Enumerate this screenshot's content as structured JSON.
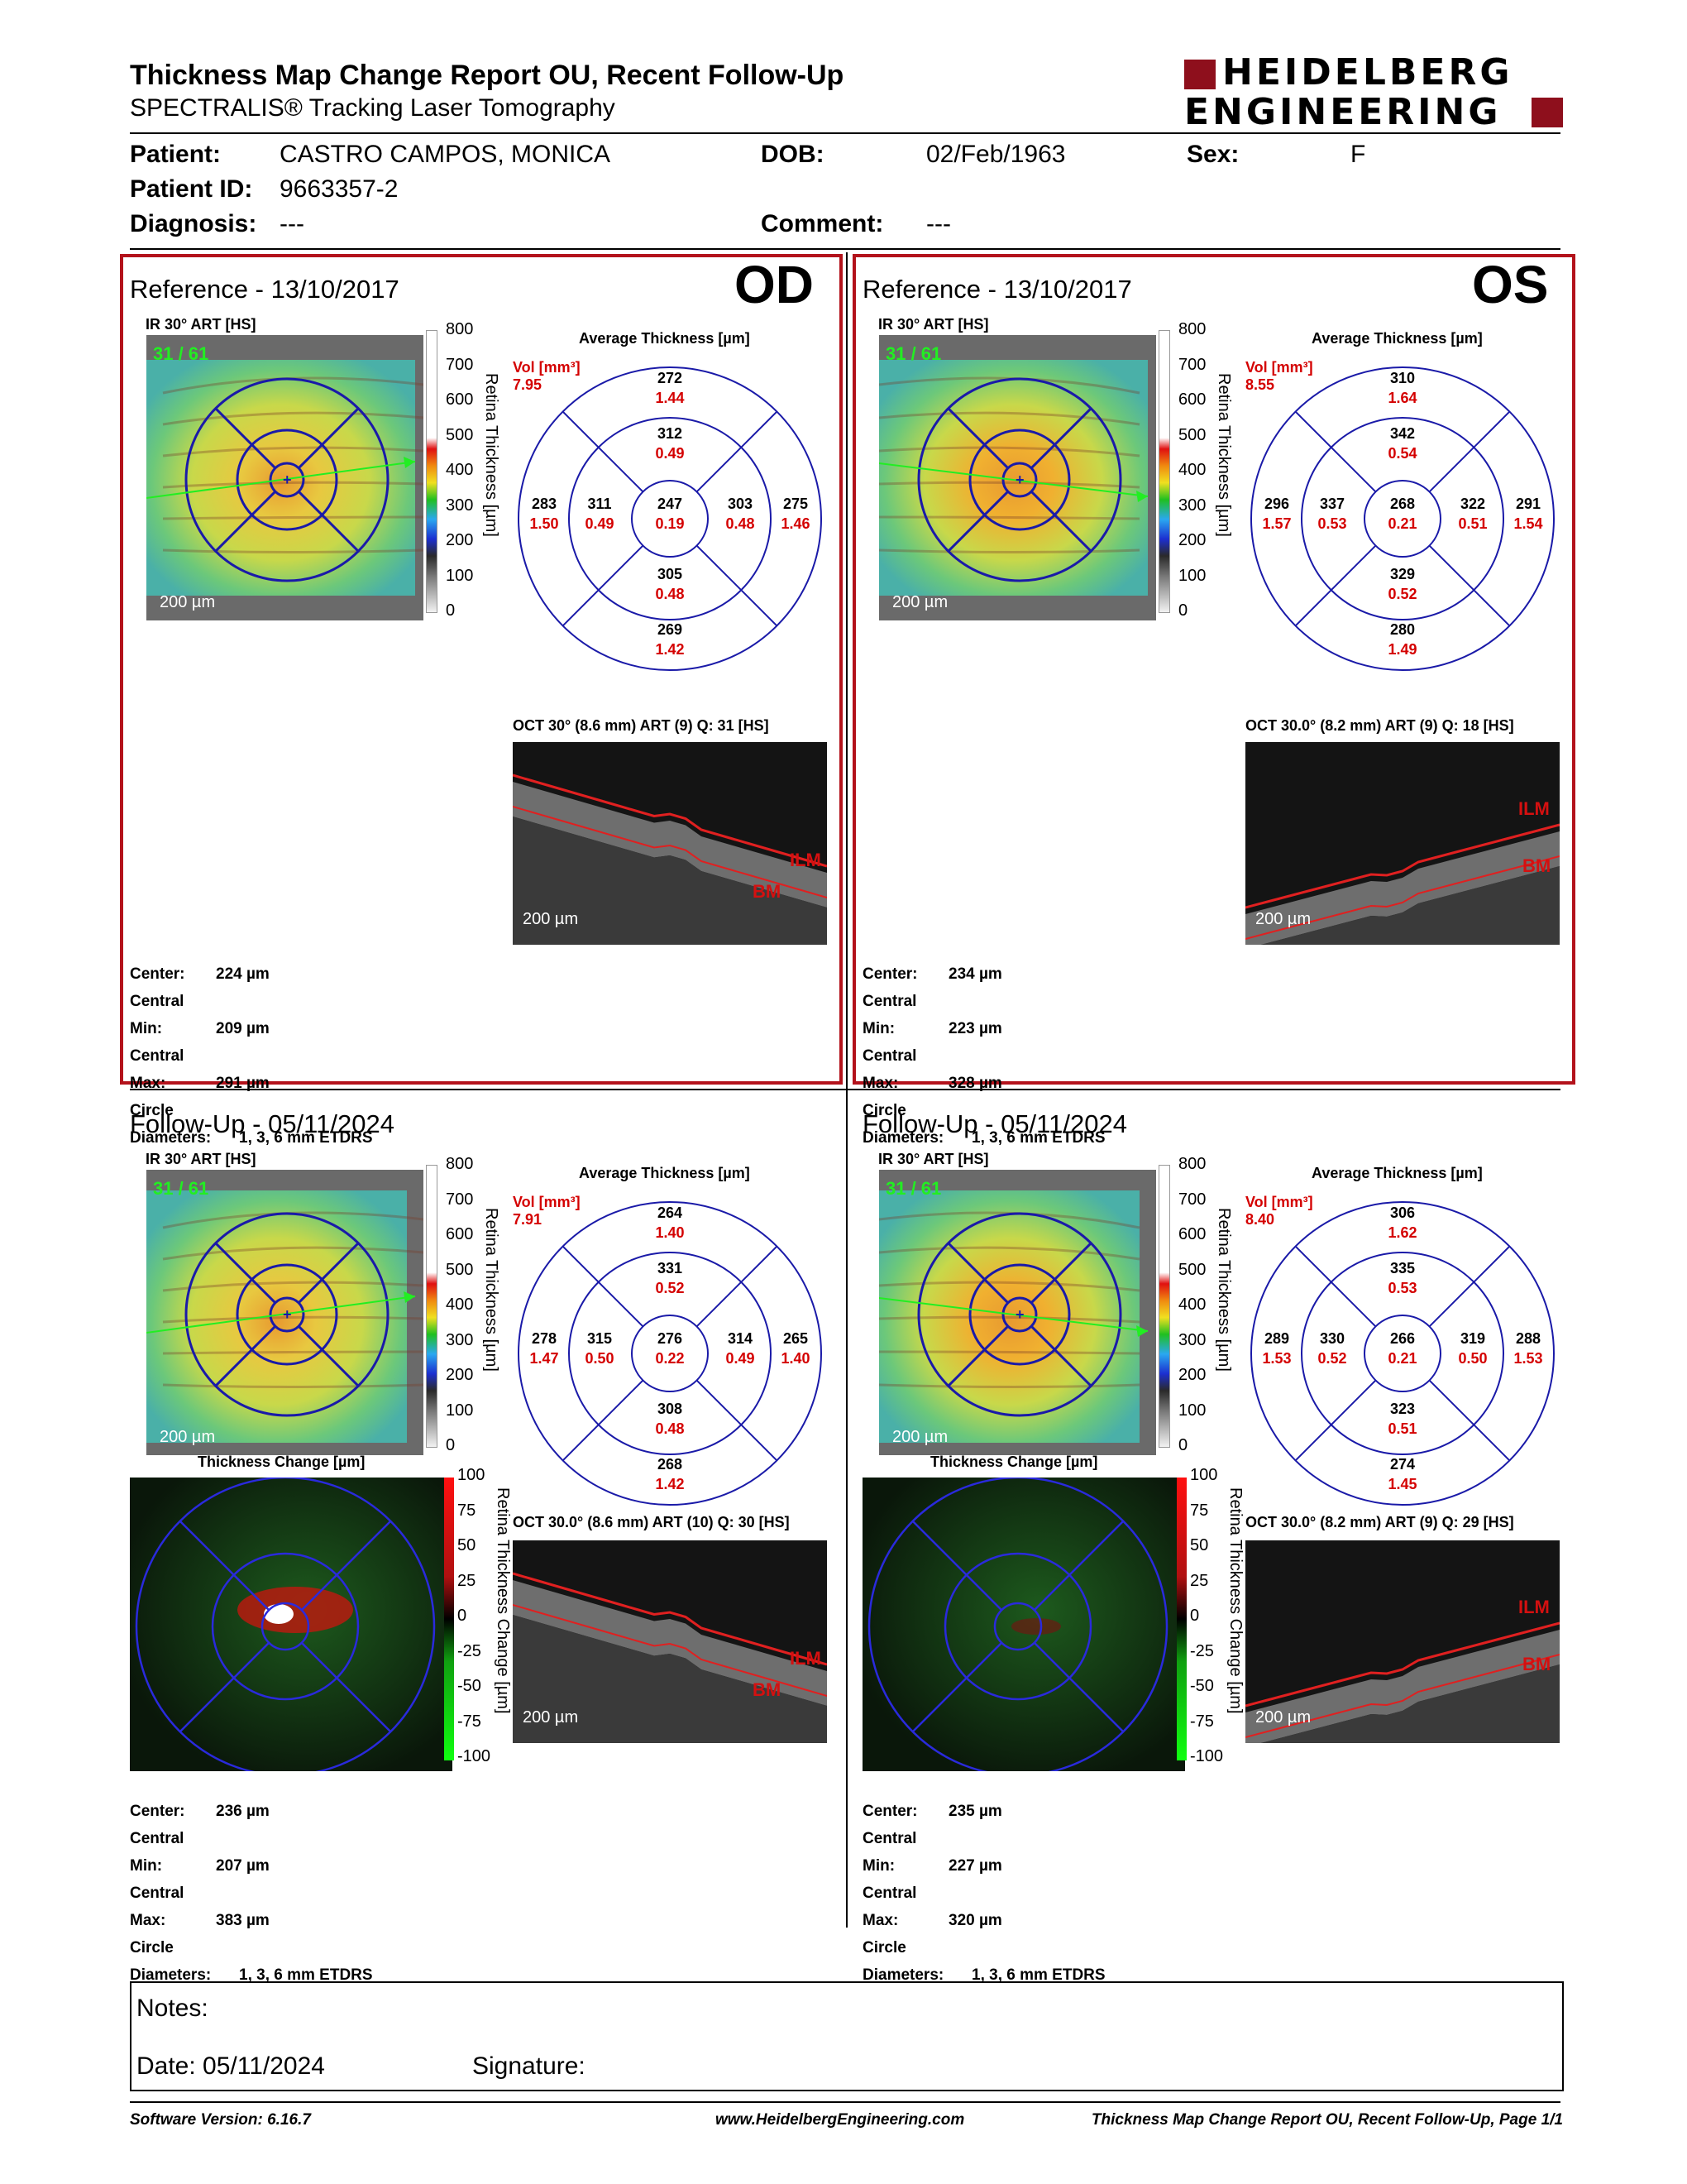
{
  "header": {
    "title": "Thickness Map Change Report OU, Recent Follow-Up",
    "subtitle": "SPECTRALIS® Tracking Laser Tomography",
    "logo_line1": "HEIDELBERG",
    "logo_line2": "ENGINEERING"
  },
  "patient": {
    "patient_label": "Patient:",
    "patient_value": "CASTRO CAMPOS, MONICA",
    "dob_label": "DOB:",
    "dob_value": "02/Feb/1963",
    "sex_label": "Sex:",
    "sex_value": "F",
    "id_label": "Patient ID:",
    "id_value": "9663357-2",
    "diagnosis_label": "Diagnosis:",
    "diagnosis_value": "---",
    "comment_label": "Comment:",
    "comment_value": "---"
  },
  "common": {
    "ir_label": "IR 30° ART [HS]",
    "avg_thickness_title": "Average Thickness [µm]",
    "vol_label": "Vol [mm³]",
    "scale_bar": "200 µm",
    "retina_thickness_axis": "Retina Thickness [µm]",
    "thickness_change_title": "Thickness Change [µm]",
    "thickness_change_axis": "Retina Thickness Change [µm]",
    "cbar_ticks": [
      "800",
      "700",
      "600",
      "500",
      "400",
      "300",
      "200",
      "100",
      "0"
    ],
    "change_ticks": [
      "100",
      "75",
      "50",
      "25",
      "0",
      "-25",
      "-50",
      "-75",
      "-100"
    ],
    "ilm": "ILM",
    "bm": "BM",
    "center_label": "Center:",
    "cmin_label": "Central Min:",
    "cmax_label": "Central Max:",
    "circle_label": "Circle Diameters:",
    "circle_value": "1, 3, 6 mm ETDRS",
    "frame_count": "31 / 61"
  },
  "od_ref": {
    "title": "Reference - 13/10/2017",
    "eye": "OD",
    "vol": "7.95",
    "oct_label": "OCT 30° (8.6 mm) ART (9) Q: 31 [HS]",
    "center": "224 µm",
    "cmin": "209 µm",
    "cmax": "291 µm",
    "grid": {
      "c": [
        "247",
        "0.19"
      ],
      "in_s": [
        "312",
        "0.49"
      ],
      "in_i": [
        "305",
        "0.48"
      ],
      "in_n": [
        "311",
        "0.49"
      ],
      "in_t": [
        "303",
        "0.48"
      ],
      "out_s": [
        "272",
        "1.44"
      ],
      "out_i": [
        "269",
        "1.42"
      ],
      "out_l": [
        "283",
        "1.50"
      ],
      "out_r": [
        "275",
        "1.46"
      ]
    }
  },
  "os_ref": {
    "title": "Reference - 13/10/2017",
    "eye": "OS",
    "vol": "8.55",
    "oct_label": "OCT 30.0° (8.2 mm) ART (9) Q: 18 [HS]",
    "center": "234 µm",
    "cmin": "223 µm",
    "cmax": "328 µm",
    "grid": {
      "c": [
        "268",
        "0.21"
      ],
      "in_s": [
        "342",
        "0.54"
      ],
      "in_i": [
        "329",
        "0.52"
      ],
      "in_n": [
        "337",
        "0.53"
      ],
      "in_t": [
        "322",
        "0.51"
      ],
      "out_s": [
        "310",
        "1.64"
      ],
      "out_i": [
        "280",
        "1.49"
      ],
      "out_l": [
        "296",
        "1.57"
      ],
      "out_r": [
        "291",
        "1.54"
      ]
    }
  },
  "od_fu": {
    "title": "Follow-Up - 05/11/2024",
    "vol": "7.91",
    "oct_label": "OCT 30.0° (8.6 mm) ART (10) Q: 30 [HS]",
    "center": "236 µm",
    "cmin": "207 µm",
    "cmax": "383 µm",
    "grid": {
      "c": [
        "276",
        "0.22"
      ],
      "in_s": [
        "331",
        "0.52"
      ],
      "in_i": [
        "308",
        "0.48"
      ],
      "in_n": [
        "315",
        "0.50"
      ],
      "in_t": [
        "314",
        "0.49"
      ],
      "out_s": [
        "264",
        "1.40"
      ],
      "out_i": [
        "268",
        "1.42"
      ],
      "out_l": [
        "278",
        "1.47"
      ],
      "out_r": [
        "265",
        "1.40"
      ]
    }
  },
  "os_fu": {
    "title": "Follow-Up - 05/11/2024",
    "vol": "8.40",
    "oct_label": "OCT 30.0° (8.2 mm) ART (9) Q: 29 [HS]",
    "center": "235 µm",
    "cmin": "227 µm",
    "cmax": "320 µm",
    "grid": {
      "c": [
        "266",
        "0.21"
      ],
      "in_s": [
        "335",
        "0.53"
      ],
      "in_i": [
        "323",
        "0.51"
      ],
      "in_n": [
        "330",
        "0.52"
      ],
      "in_t": [
        "319",
        "0.50"
      ],
      "out_s": [
        "306",
        "1.62"
      ],
      "out_i": [
        "274",
        "1.45"
      ],
      "out_l": [
        "289",
        "1.53"
      ],
      "out_r": [
        "288",
        "1.53"
      ]
    }
  },
  "notes": {
    "notes_label": "Notes:",
    "date_label": "Date: 05/11/2024",
    "signature_label": "Signature:"
  },
  "footer": {
    "software": "Software Version: 6.16.7",
    "url": "www.HeidelbergEngineering.com",
    "page": "Thickness Map Change Report OU, Recent Follow-Up, Page 1/1"
  },
  "colors": {
    "accent_red": "#b3121b",
    "grid_blue": "#1a1aa8",
    "value_red": "#d40000",
    "frame_green": "#22ee22"
  }
}
